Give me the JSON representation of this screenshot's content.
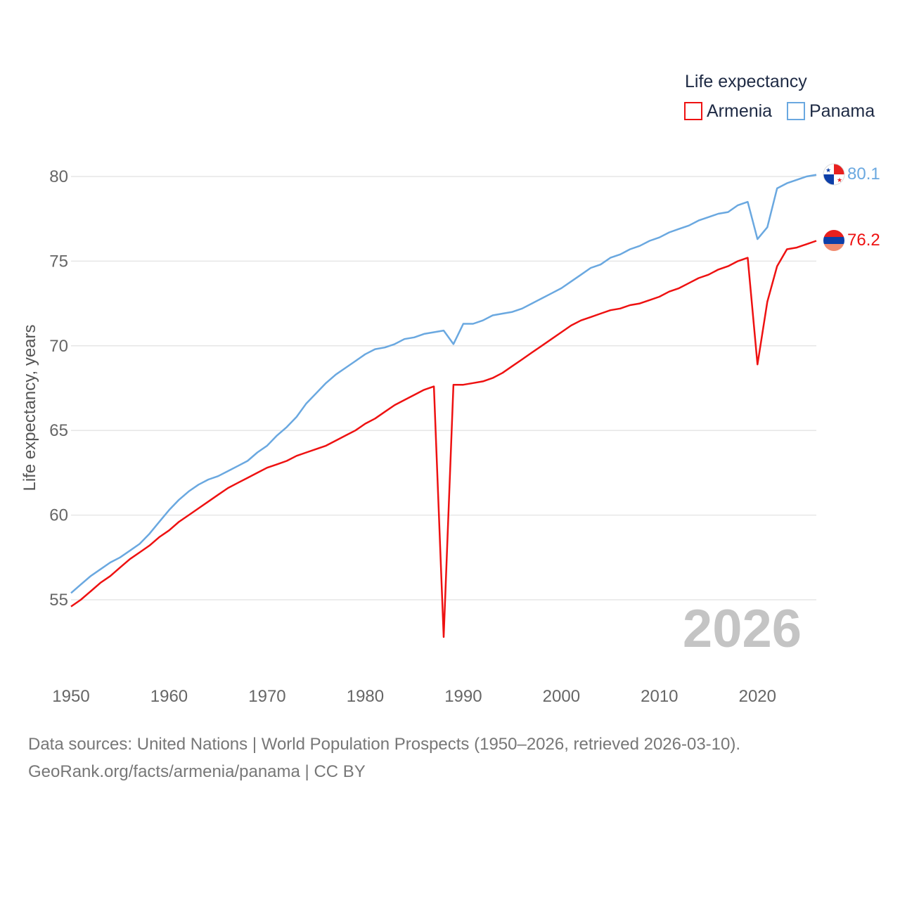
{
  "chart_data": {
    "type": "line",
    "ylabel": "Life expectancy, years",
    "xlim": [
      1950,
      2026
    ],
    "ylim": [
      51.5,
      82.2
    ],
    "x_ticks": [
      1950,
      1960,
      1970,
      1980,
      1990,
      2000,
      2010,
      2020
    ],
    "y_ticks": [
      55,
      60,
      65,
      70,
      75,
      80
    ],
    "legend_title": "Life expectancy",
    "legend_position": "top-right",
    "year_watermark": "2026",
    "series": [
      {
        "name": "Armenia",
        "color": "#ee1111",
        "end_label": "76.2",
        "flag": "armenia-flag-icon",
        "x": [
          1950,
          1951,
          1952,
          1953,
          1954,
          1955,
          1956,
          1957,
          1958,
          1959,
          1960,
          1961,
          1962,
          1963,
          1964,
          1965,
          1966,
          1967,
          1968,
          1969,
          1970,
          1971,
          1972,
          1973,
          1974,
          1975,
          1976,
          1977,
          1978,
          1979,
          1980,
          1981,
          1982,
          1983,
          1984,
          1985,
          1986,
          1987,
          1988,
          1989,
          1990,
          1991,
          1992,
          1993,
          1994,
          1995,
          1996,
          1997,
          1998,
          1999,
          2000,
          2001,
          2002,
          2003,
          2004,
          2005,
          2006,
          2007,
          2008,
          2009,
          2010,
          2011,
          2012,
          2013,
          2014,
          2015,
          2016,
          2017,
          2018,
          2019,
          2020,
          2021,
          2022,
          2023,
          2024,
          2025,
          2026
        ],
        "values": [
          54.6,
          55.0,
          55.5,
          56.0,
          56.4,
          56.9,
          57.4,
          57.8,
          58.2,
          58.7,
          59.1,
          59.6,
          60.0,
          60.4,
          60.8,
          61.2,
          61.6,
          61.9,
          62.2,
          62.5,
          62.8,
          63.0,
          63.2,
          63.5,
          63.7,
          63.9,
          64.1,
          64.4,
          64.7,
          65.0,
          65.4,
          65.7,
          66.1,
          66.5,
          66.8,
          67.1,
          67.4,
          67.6,
          52.8,
          67.7,
          67.7,
          67.8,
          67.9,
          68.1,
          68.4,
          68.8,
          69.2,
          69.6,
          70.0,
          70.4,
          70.8,
          71.2,
          71.5,
          71.7,
          71.9,
          72.1,
          72.2,
          72.4,
          72.5,
          72.7,
          72.9,
          73.2,
          73.4,
          73.7,
          74.0,
          74.2,
          74.5,
          74.7,
          75.0,
          75.2,
          68.9,
          72.6,
          74.7,
          75.7,
          75.8,
          76.0,
          76.2
        ]
      },
      {
        "name": "Panama",
        "color": "#6aa8e0",
        "end_label": "80.1",
        "flag": "panama-flag-icon",
        "x": [
          1950,
          1951,
          1952,
          1953,
          1954,
          1955,
          1956,
          1957,
          1958,
          1959,
          1960,
          1961,
          1962,
          1963,
          1964,
          1965,
          1966,
          1967,
          1968,
          1969,
          1970,
          1971,
          1972,
          1973,
          1974,
          1975,
          1976,
          1977,
          1978,
          1979,
          1980,
          1981,
          1982,
          1983,
          1984,
          1985,
          1986,
          1987,
          1988,
          1989,
          1990,
          1991,
          1992,
          1993,
          1994,
          1995,
          1996,
          1997,
          1998,
          1999,
          2000,
          2001,
          2002,
          2003,
          2004,
          2005,
          2006,
          2007,
          2008,
          2009,
          2010,
          2011,
          2012,
          2013,
          2014,
          2015,
          2016,
          2017,
          2018,
          2019,
          2020,
          2021,
          2022,
          2023,
          2024,
          2025,
          2026
        ],
        "values": [
          55.4,
          55.9,
          56.4,
          56.8,
          57.2,
          57.5,
          57.9,
          58.3,
          58.9,
          59.6,
          60.3,
          60.9,
          61.4,
          61.8,
          62.1,
          62.3,
          62.6,
          62.9,
          63.2,
          63.7,
          64.1,
          64.7,
          65.2,
          65.8,
          66.6,
          67.2,
          67.8,
          68.3,
          68.7,
          69.1,
          69.5,
          69.8,
          69.9,
          70.1,
          70.4,
          70.5,
          70.7,
          70.8,
          70.9,
          70.1,
          71.3,
          71.3,
          71.5,
          71.8,
          71.9,
          72.0,
          72.2,
          72.5,
          72.8,
          73.1,
          73.4,
          73.8,
          74.2,
          74.6,
          74.8,
          75.2,
          75.4,
          75.7,
          75.9,
          76.2,
          76.4,
          76.7,
          76.9,
          77.1,
          77.4,
          77.6,
          77.8,
          77.9,
          78.3,
          78.5,
          76.3,
          77.0,
          79.3,
          79.6,
          79.8,
          80.0,
          80.1
        ]
      }
    ]
  },
  "footer": {
    "sources": "Data sources: United Nations | World Population Prospects (1950–2026, retrieved 2026-03-10).",
    "attribution": "GeoRank.org/facts/armenia/panama | CC BY"
  }
}
